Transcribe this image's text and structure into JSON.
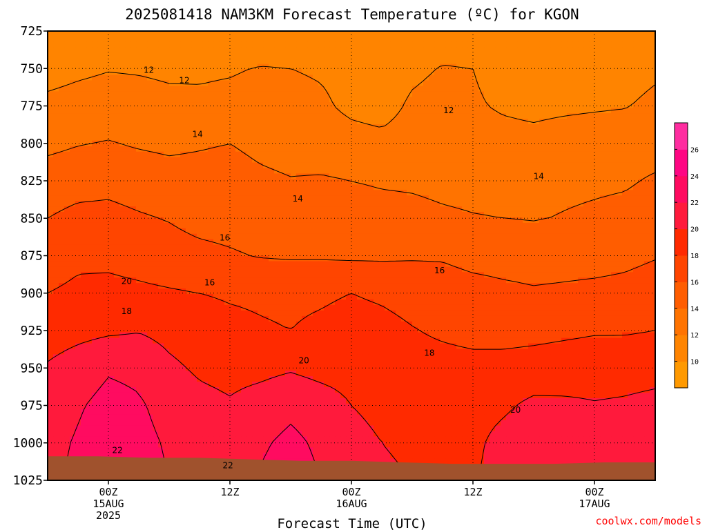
{
  "chart_data": {
    "type": "heatmap",
    "title": "2025081418 NAM3KM Forecast Temperature (ºC) for KGON",
    "xlabel": "Forecast Time (UTC)",
    "credit": "coolwx.com/models",
    "y_axis": {
      "pressure_hPa": [
        725,
        750,
        775,
        800,
        825,
        850,
        875,
        900,
        925,
        950,
        975,
        1000,
        1025
      ],
      "labels": [
        "725",
        "750",
        "775",
        "800",
        "825",
        "850",
        "875",
        "900",
        "925",
        "950",
        "975",
        "1000",
        "1025"
      ],
      "range": [
        1025,
        725
      ]
    },
    "x_axis": {
      "range_hours_since_2025081418": [
        0,
        60
      ],
      "ticks": [
        {
          "hour": 6,
          "lines": [
            "00Z",
            "15AUG",
            "2025"
          ]
        },
        {
          "hour": 18,
          "lines": [
            "12Z"
          ]
        },
        {
          "hour": 30,
          "lines": [
            "00Z",
            "16AUG"
          ]
        },
        {
          "hour": 42,
          "lines": [
            "12Z"
          ]
        },
        {
          "hour": 54,
          "lines": [
            "00Z",
            "17AUG"
          ]
        }
      ]
    },
    "color_levels_C": [
      10,
      12,
      14,
      16,
      18,
      20,
      22,
      24,
      26
    ],
    "colorbar_labels": [
      "10",
      "12",
      "14",
      "16",
      "18",
      "20",
      "22",
      "24",
      "26"
    ],
    "colors": [
      "#ff9900",
      "#ff8400",
      "#ff7300",
      "#ff5d00",
      "#ff4500",
      "#ff2a00",
      "#ff1a3c",
      "#ff0b60",
      "#ff0683",
      "#ff2da0"
    ],
    "ground_color": "#a0522d",
    "surface_pressure_hPa": [
      1009,
      1009,
      1010,
      1010,
      1011,
      1012,
      1012,
      1013,
      1014,
      1014,
      1014,
      1013,
      1013
    ],
    "surface_hours": [
      0,
      5,
      10,
      15,
      20,
      25,
      30,
      35,
      40,
      45,
      50,
      55,
      60
    ],
    "contour_label_values": [
      "12",
      "12",
      "12",
      "14",
      "14",
      "14",
      "16",
      "16",
      "16",
      "18",
      "18",
      "20",
      "20",
      "20",
      "22",
      "22"
    ],
    "times_h": [
      0,
      3,
      6,
      9,
      12,
      15,
      18,
      21,
      24,
      27,
      30,
      33,
      36,
      39,
      42,
      45,
      48,
      51,
      54,
      57,
      60
    ],
    "levels_hPa": [
      725,
      750,
      775,
      800,
      825,
      850,
      875,
      900,
      925,
      950,
      975,
      1000,
      1025
    ],
    "temperature_C": [
      [
        10.0,
        10.3,
        10.6,
        10.6,
        10.4,
        10.2,
        10.3,
        10.6,
        10.8,
        10.7,
        10.9,
        11.1,
        11.2,
        11.1,
        11.0,
        11.3,
        11.2,
        11.1,
        10.6,
        10.4,
        10.8
      ],
      [
        11.2,
        11.6,
        11.9,
        11.8,
        11.6,
        11.7,
        11.8,
        12.1,
        12.0,
        11.8,
        11.4,
        11.0,
        11.6,
        12.1,
        12.0,
        11.4,
        11.3,
        11.4,
        11.5,
        11.3,
        11.7
      ],
      [
        12.5,
        12.8,
        13.0,
        12.9,
        12.6,
        12.4,
        12.6,
        12.9,
        12.6,
        12.3,
        11.6,
        11.3,
        12.3,
        12.7,
        12.2,
        11.8,
        11.6,
        11.7,
        11.8,
        11.9,
        12.4
      ],
      [
        13.5,
        13.9,
        14.1,
        13.8,
        13.6,
        13.8,
        14.0,
        13.5,
        13.2,
        13.0,
        12.7,
        12.5,
        12.8,
        13.0,
        12.8,
        12.6,
        12.5,
        12.8,
        13.0,
        13.2,
        13.3
      ],
      [
        15.0,
        15.3,
        15.4,
        15.1,
        14.8,
        14.8,
        14.9,
        14.4,
        14.1,
        14.2,
        14.0,
        13.8,
        13.7,
        13.5,
        13.4,
        13.3,
        13.4,
        13.6,
        13.7,
        13.8,
        14.2
      ],
      [
        16.0,
        16.5,
        16.6,
        16.2,
        15.9,
        15.4,
        15.3,
        15.0,
        15.0,
        14.9,
        14.9,
        14.7,
        14.6,
        14.3,
        14.1,
        14.0,
        13.9,
        14.1,
        14.3,
        14.5,
        14.8
      ],
      [
        17.0,
        17.6,
        17.5,
        17.2,
        16.8,
        16.5,
        16.2,
        15.9,
        15.8,
        15.8,
        15.7,
        15.7,
        15.8,
        15.8,
        15.4,
        15.3,
        15.2,
        15.3,
        15.4,
        15.6,
        15.9
      ],
      [
        18.0,
        18.4,
        18.6,
        18.4,
        18.2,
        18.0,
        17.8,
        17.7,
        17.6,
        17.7,
        18.0,
        17.7,
        17.3,
        17.0,
        16.7,
        16.4,
        16.2,
        16.3,
        16.4,
        16.5,
        16.8
      ],
      [
        19.0,
        19.4,
        19.7,
        19.9,
        19.4,
        18.9,
        18.5,
        18.2,
        18.0,
        18.4,
        18.8,
        18.6,
        18.1,
        17.7,
        17.4,
        17.3,
        17.4,
        17.6,
        17.8,
        17.8,
        18.0
      ],
      [
        20.2,
        21.0,
        21.8,
        21.6,
        20.4,
        19.7,
        19.4,
        19.5,
        19.8,
        19.4,
        19.3,
        19.0,
        18.8,
        18.7,
        18.6,
        18.7,
        18.9,
        19.1,
        19.3,
        19.4,
        19.5
      ],
      [
        21.0,
        21.8,
        22.6,
        22.2,
        21.4,
        20.6,
        20.2,
        20.8,
        21.5,
        20.9,
        20.0,
        19.6,
        19.5,
        19.4,
        19.3,
        19.7,
        20.4,
        20.3,
        20.1,
        20.2,
        20.4
      ],
      [
        21.4,
        22.2,
        23.0,
        22.5,
        21.8,
        21.0,
        20.8,
        21.7,
        22.5,
        21.6,
        20.5,
        20.0,
        19.8,
        19.7,
        19.6,
        20.6,
        21.3,
        20.9,
        20.5,
        20.6,
        20.8
      ],
      [
        21.6,
        22.4,
        23.2,
        22.7,
        22.0,
        21.3,
        21.2,
        22.2,
        23.0,
        22.0,
        20.8,
        20.2,
        20.0,
        19.9,
        19.8,
        20.9,
        21.7,
        21.2,
        20.8,
        20.8,
        21.0
      ]
    ]
  }
}
